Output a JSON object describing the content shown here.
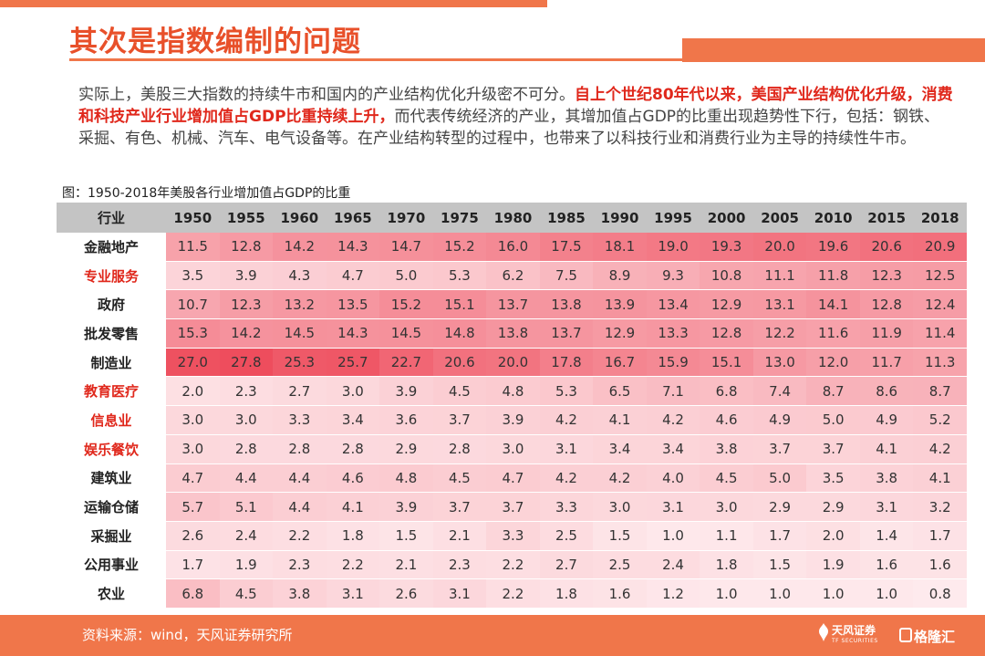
{
  "title": "其次是指数编制的问题",
  "intro": {
    "part1": "实际上，美股三大指数的持续牛市和国内的产业结构优化升级密不可分。",
    "highlight": "自上个世纪80年代以来，美国产业结构优化升级，消费和科技产业行业增加值占GDP比重持续上升，",
    "part2": "而代表传统经济的产业，其增加值占GDP的比重出现趋势性下行，包括：钢铁、采掘、有色、机械、汽车、电气设备等。在产业结构转型的过程中，也带来了以科技行业和消费行业为主导的持续性牛市。"
  },
  "caption": "图：1950-2018年美股各行业增加值占GDP的比重",
  "table": {
    "header": [
      "行业",
      "1950",
      "1955",
      "1960",
      "1965",
      "1970",
      "1975",
      "1980",
      "1985",
      "1990",
      "1995",
      "2000",
      "2005",
      "2010",
      "2015",
      "2018"
    ],
    "rows": [
      {
        "name": "金融地产",
        "highlight": false,
        "values": [
          "11.5",
          "12.8",
          "14.2",
          "14.3",
          "14.7",
          "15.2",
          "16.0",
          "17.5",
          "18.1",
          "19.0",
          "19.3",
          "20.0",
          "19.6",
          "20.6",
          "20.9"
        ]
      },
      {
        "name": "专业服务",
        "highlight": true,
        "values": [
          "3.5",
          "3.9",
          "4.3",
          "4.7",
          "5.0",
          "5.3",
          "6.2",
          "7.5",
          "8.9",
          "9.3",
          "10.8",
          "11.1",
          "11.8",
          "12.3",
          "12.5"
        ]
      },
      {
        "name": "政府",
        "highlight": false,
        "values": [
          "10.7",
          "12.3",
          "13.2",
          "13.5",
          "15.2",
          "15.1",
          "13.7",
          "13.8",
          "13.9",
          "13.4",
          "12.9",
          "13.1",
          "14.1",
          "12.8",
          "12.4"
        ]
      },
      {
        "name": "批发零售",
        "highlight": false,
        "values": [
          "15.3",
          "14.2",
          "14.5",
          "14.3",
          "14.5",
          "14.8",
          "13.8",
          "13.7",
          "12.9",
          "13.3",
          "12.8",
          "12.2",
          "11.6",
          "11.9",
          "11.4"
        ]
      },
      {
        "name": "制造业",
        "highlight": false,
        "values": [
          "27.0",
          "27.8",
          "25.3",
          "25.7",
          "22.7",
          "20.6",
          "20.0",
          "17.8",
          "16.7",
          "15.9",
          "15.1",
          "13.0",
          "12.0",
          "11.7",
          "11.3"
        ]
      },
      {
        "name": "教育医疗",
        "highlight": true,
        "values": [
          "2.0",
          "2.3",
          "2.7",
          "3.0",
          "3.9",
          "4.5",
          "4.8",
          "5.3",
          "6.5",
          "7.1",
          "6.8",
          "7.4",
          "8.7",
          "8.6",
          "8.7"
        ]
      },
      {
        "name": "信息业",
        "highlight": true,
        "values": [
          "3.0",
          "3.0",
          "3.3",
          "3.4",
          "3.6",
          "3.7",
          "3.9",
          "4.2",
          "4.1",
          "4.2",
          "4.6",
          "4.9",
          "5.0",
          "4.9",
          "5.2"
        ]
      },
      {
        "name": "娱乐餐饮",
        "highlight": true,
        "values": [
          "3.0",
          "2.8",
          "2.8",
          "2.8",
          "2.9",
          "2.8",
          "3.0",
          "3.1",
          "3.4",
          "3.4",
          "3.8",
          "3.7",
          "3.7",
          "4.1",
          "4.2"
        ]
      },
      {
        "name": "建筑业",
        "highlight": false,
        "values": [
          "4.7",
          "4.4",
          "4.4",
          "4.6",
          "4.8",
          "4.5",
          "4.7",
          "4.2",
          "4.2",
          "4.0",
          "4.5",
          "5.0",
          "3.5",
          "3.8",
          "4.1"
        ]
      },
      {
        "name": "运输仓储",
        "highlight": false,
        "values": [
          "5.7",
          "5.1",
          "4.4",
          "4.1",
          "3.9",
          "3.7",
          "3.7",
          "3.3",
          "3.0",
          "3.1",
          "3.0",
          "2.9",
          "2.9",
          "3.1",
          "3.2"
        ]
      },
      {
        "name": "采掘业",
        "highlight": false,
        "values": [
          "2.6",
          "2.4",
          "2.2",
          "1.8",
          "1.5",
          "2.1",
          "3.3",
          "2.5",
          "1.5",
          "1.0",
          "1.1",
          "1.7",
          "2.0",
          "1.4",
          "1.7"
        ]
      },
      {
        "name": "公用事业",
        "highlight": false,
        "values": [
          "1.7",
          "1.9",
          "2.3",
          "2.2",
          "2.1",
          "2.3",
          "2.2",
          "2.7",
          "2.5",
          "2.4",
          "1.8",
          "1.5",
          "1.9",
          "1.6",
          "1.6"
        ]
      },
      {
        "name": "农业",
        "highlight": false,
        "values": [
          "6.8",
          "4.5",
          "3.8",
          "3.1",
          "2.6",
          "3.1",
          "2.2",
          "1.8",
          "1.6",
          "1.2",
          "1.0",
          "1.0",
          "1.0",
          "1.0",
          "0.8"
        ]
      }
    ]
  },
  "footer": {
    "source": "资料来源：wind，天风证券研究所",
    "logo1": "天风证券",
    "logo1_sub": "TF SECURITIES",
    "logo2": "格隆汇"
  },
  "colors": {
    "accent": "#f0764a",
    "title": "#e8502a",
    "highlight_text": "#e0281c",
    "heat_max": "#ee4c5c",
    "heat_min": "#fff4f5"
  }
}
